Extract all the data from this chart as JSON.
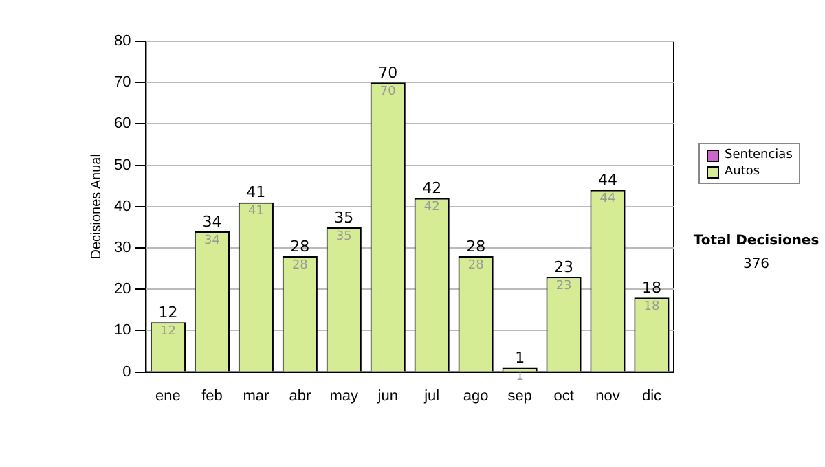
{
  "chart_data": {
    "type": "bar",
    "ylabel": "Decisiones Anual",
    "categories": [
      "ene",
      "feb",
      "mar",
      "abr",
      "may",
      "jun",
      "jul",
      "ago",
      "sep",
      "oct",
      "nov",
      "dic"
    ],
    "series": [
      {
        "name": "Sentencias",
        "color": "#cc66cc",
        "values": [
          0,
          0,
          0,
          0,
          0,
          0,
          0,
          0,
          0,
          0,
          0,
          0
        ]
      },
      {
        "name": "Autos",
        "color": "#d6ec94",
        "values": [
          12,
          34,
          41,
          28,
          35,
          70,
          42,
          28,
          1,
          23,
          44,
          18
        ],
        "value_labels": [
          "12",
          "34",
          "41",
          "28",
          "35",
          "70",
          "42",
          "28",
          "1",
          "23",
          "44",
          "18"
        ]
      }
    ],
    "stacked": true,
    "totals": [
      "12",
      "34",
      "41",
      "28",
      "35",
      "70",
      "42",
      "28",
      "1",
      "23",
      "44",
      "18"
    ],
    "ylim": [
      0,
      80
    ],
    "yticks": [
      0,
      10,
      20,
      30,
      40,
      50,
      60,
      70,
      80
    ],
    "grid": "y",
    "legend": "right",
    "annotations": [
      "Total Decisiones",
      "376"
    ]
  }
}
